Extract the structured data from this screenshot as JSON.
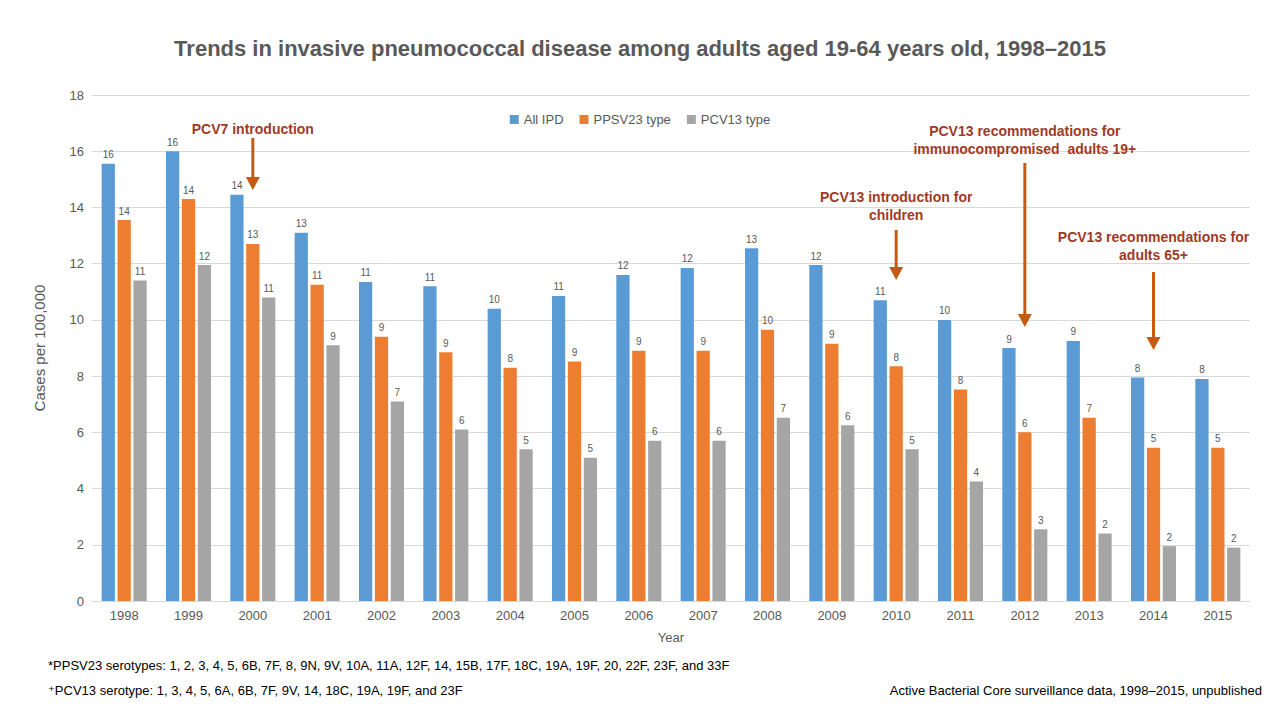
{
  "chart_data": {
    "type": "bar",
    "title": "Trends in invasive pneumococcal disease among adults aged 19-64 years old, 1998–2015",
    "x_label": "Year",
    "y_label": "Cases per 100,000",
    "categories": [
      "1998",
      "1999",
      "2000",
      "2001",
      "2002",
      "2003",
      "2004",
      "2005",
      "2006",
      "2007",
      "2008",
      "2009",
      "2010",
      "2011",
      "2012",
      "2013",
      "2014",
      "2015"
    ],
    "series": [
      {
        "name": "All IPD",
        "color": "#5B9BD5",
        "values": [
          15.55,
          16.0,
          14.45,
          13.1,
          11.35,
          11.2,
          10.4,
          10.85,
          11.6,
          11.85,
          12.55,
          11.95,
          10.7,
          10.0,
          9.0,
          9.25,
          7.95,
          7.9
        ],
        "value_labels": [
          "16",
          "16",
          "14",
          "13",
          "11",
          "11",
          "10",
          "11",
          "12",
          "12",
          "13",
          "12",
          "11",
          "10",
          "9",
          "9",
          "8",
          "8"
        ]
      },
      {
        "name": "PPSV23 type",
        "color": "#ED7D31",
        "values": [
          13.55,
          14.3,
          12.7,
          11.25,
          9.4,
          8.85,
          8.3,
          8.52,
          8.9,
          8.9,
          9.65,
          9.15,
          8.35,
          7.52,
          6.0,
          6.52,
          5.45,
          5.45
        ],
        "value_labels": [
          "14",
          "14",
          "13",
          "11",
          "9",
          "9",
          "8",
          "9",
          "9",
          "9",
          "10",
          "9",
          "8",
          "8",
          "6",
          "7",
          "5",
          "5"
        ]
      },
      {
        "name": "PCV13 type",
        "color": "#A5A5A5",
        "values": [
          11.4,
          11.95,
          10.8,
          9.1,
          7.1,
          6.1,
          5.4,
          5.1,
          5.7,
          5.7,
          6.52,
          6.25,
          5.4,
          4.25,
          2.55,
          2.4,
          1.95,
          1.9
        ],
        "value_labels": [
          "11",
          "12",
          "11",
          "9",
          "7",
          "6",
          "5",
          "5",
          "6",
          "6",
          "7",
          "6",
          "5",
          "4",
          "3",
          "2",
          "2",
          "2"
        ]
      }
    ],
    "ylim": [
      0,
      18
    ],
    "yticks": [
      0,
      2,
      4,
      6,
      8,
      10,
      12,
      14,
      16,
      18
    ],
    "grid": true,
    "legend": "top",
    "data_labels": true,
    "annotations": [
      {
        "text": "PCV7 introduction",
        "x": "2000"
      },
      {
        "text": "PCV13 introduction for\nchildren",
        "x": "2010"
      },
      {
        "text": "PCV13 recommendations for\nimmunocompromised  adults 19+",
        "x": "2012"
      },
      {
        "text": "PCV13 recommendations for\nadults 65+",
        "x": "2014"
      }
    ],
    "notes": [
      "*PPSV23 serotypes: 1, 2, 3, 4, 5, 6B, 7F, 8, 9N, 9V, 10A, 11A, 12F, 14, 15B, 17F, 18C, 19A, 19F, 20, 22F, 23F, and 33F",
      "⁺PCV13 serotype: 1, 3, 4, 5, 6A, 6B, 7F, 9V, 14, 18C, 19A, 19F, and 23F"
    ],
    "source": "Active Bacterial Core surveillance data, 1998–2015, unpublished"
  }
}
